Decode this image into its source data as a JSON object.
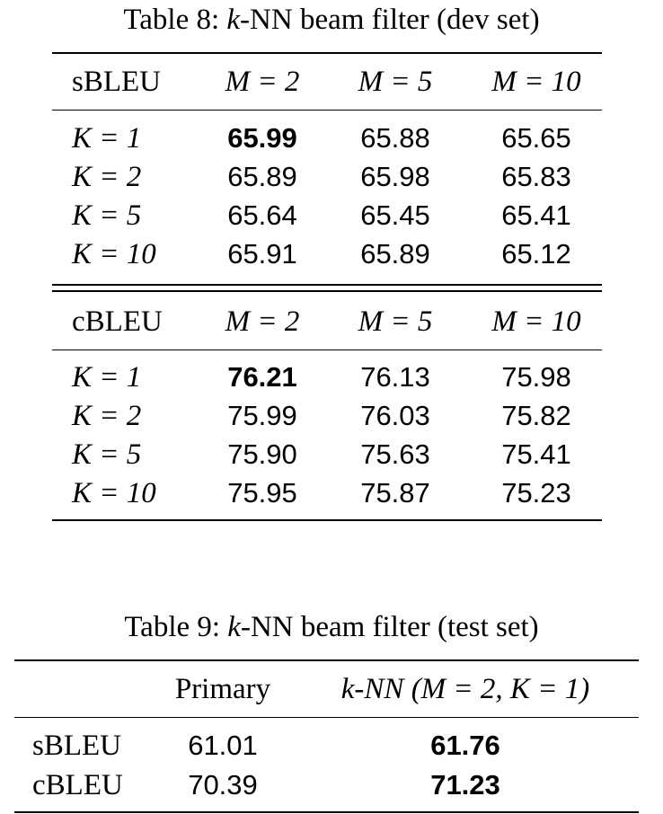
{
  "table8": {
    "caption_label": "Table 8:",
    "caption_k": "k",
    "caption_text": "-NN beam filter (dev set)",
    "sbleu": {
      "header": [
        "sBLEU",
        "M = 2",
        "M = 5",
        "M = 10"
      ],
      "rows": [
        {
          "label": "K = 1",
          "values": [
            "65.99",
            "65.88",
            "65.65"
          ],
          "bold": 0
        },
        {
          "label": "K = 2",
          "values": [
            "65.89",
            "65.98",
            "65.83"
          ]
        },
        {
          "label": "K = 5",
          "values": [
            "65.64",
            "65.45",
            "65.41"
          ]
        },
        {
          "label": "K = 10",
          "values": [
            "65.91",
            "65.89",
            "65.12"
          ]
        }
      ]
    },
    "cbleu": {
      "header": [
        "cBLEU",
        "M = 2",
        "M = 5",
        "M = 10"
      ],
      "rows": [
        {
          "label": "K = 1",
          "values": [
            "76.21",
            "76.13",
            "75.98"
          ],
          "bold": 0
        },
        {
          "label": "K = 2",
          "values": [
            "75.99",
            "76.03",
            "75.82"
          ]
        },
        {
          "label": "K = 5",
          "values": [
            "75.90",
            "75.63",
            "75.41"
          ]
        },
        {
          "label": "K = 10",
          "values": [
            "75.95",
            "75.87",
            "75.23"
          ]
        }
      ]
    }
  },
  "table9": {
    "caption_label": "Table 9:",
    "caption_k": "k",
    "caption_text": "-NN beam filter (test set)",
    "header": [
      "",
      "Primary",
      "k-NN (M = 2, K = 1)"
    ],
    "rows": [
      {
        "label": "sBLEU",
        "primary": "61.01",
        "knn": "61.76"
      },
      {
        "label": "cBLEU",
        "primary": "70.39",
        "knn": "71.23"
      }
    ]
  }
}
